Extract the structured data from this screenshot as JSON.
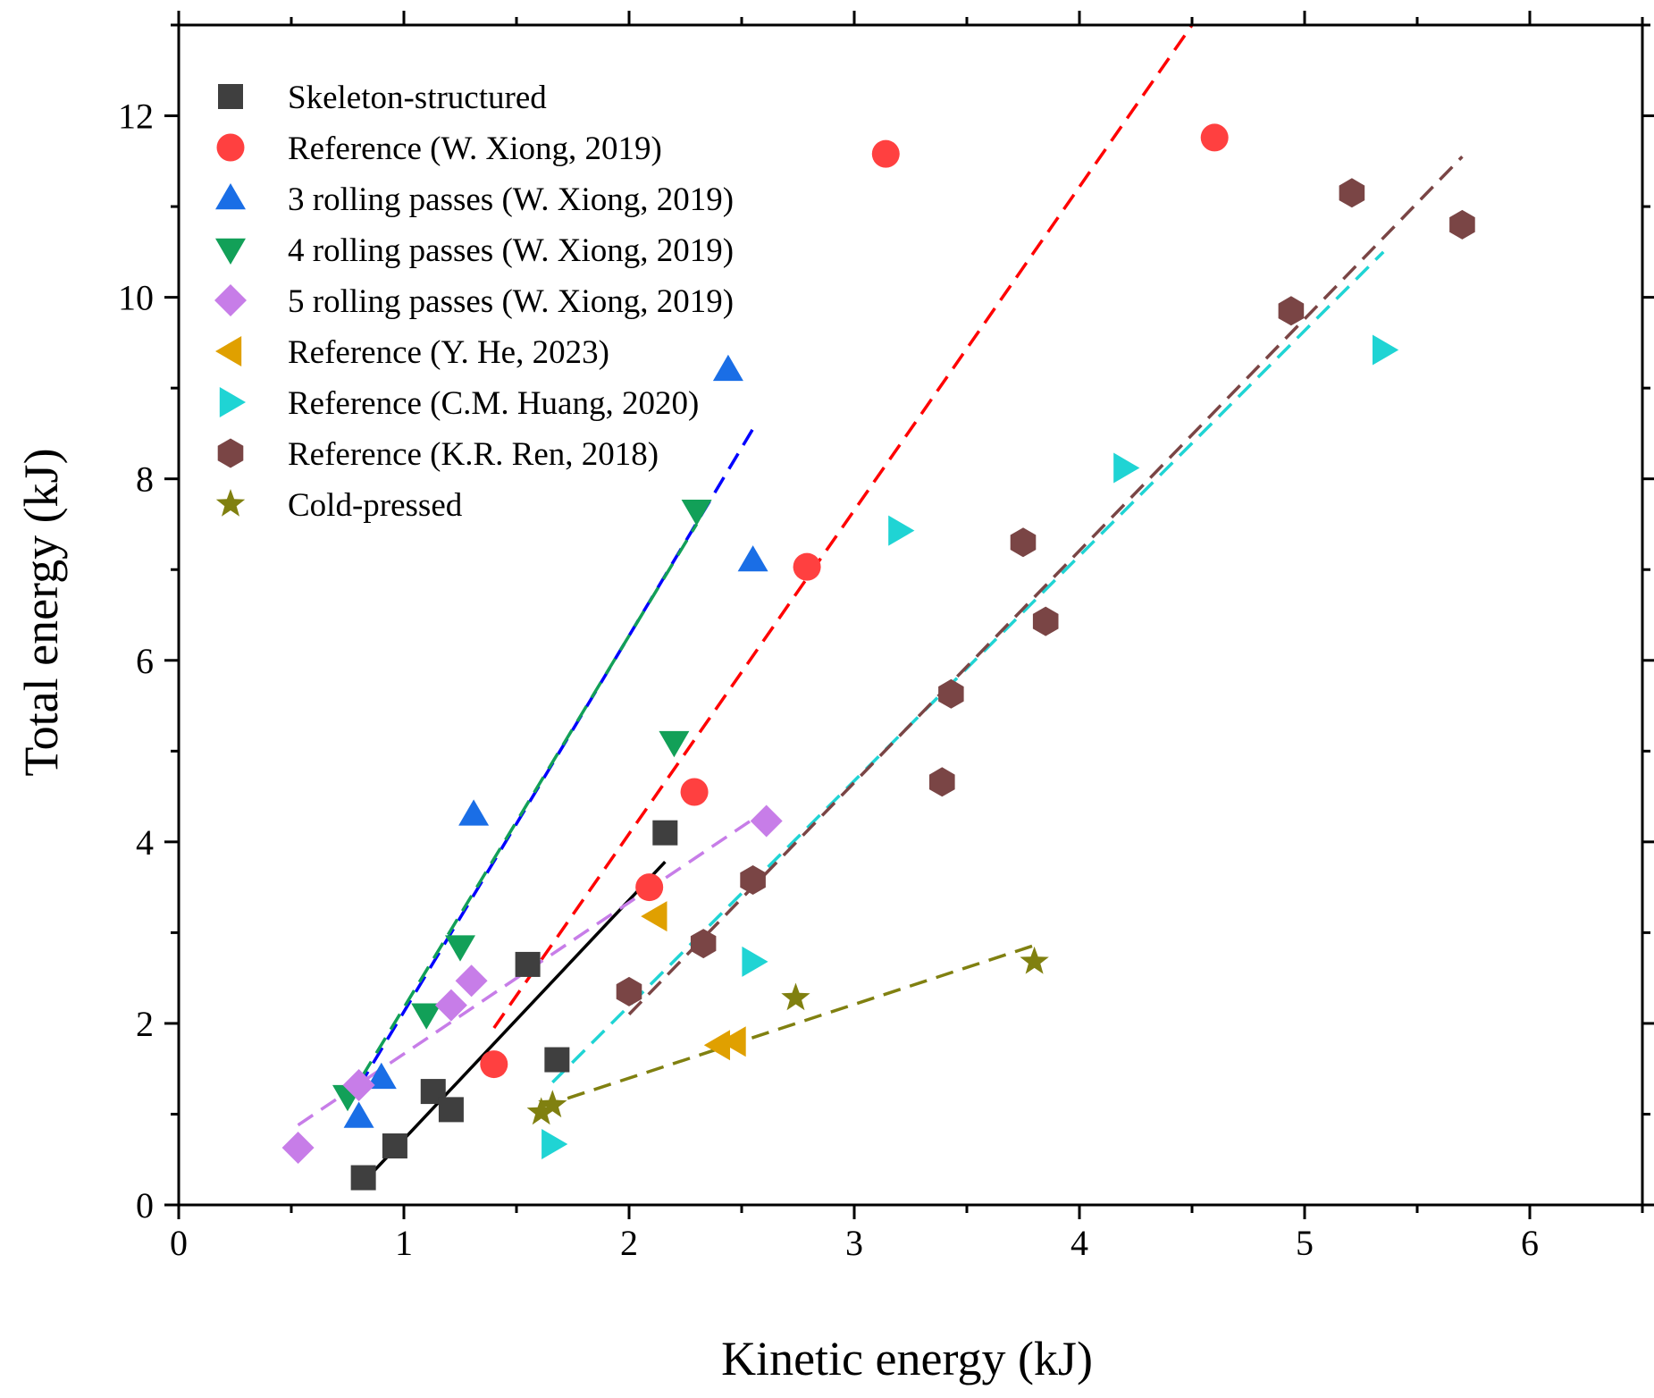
{
  "chart_data": {
    "type": "scatter",
    "title": "",
    "xlabel": "Kinetic energy (kJ)",
    "ylabel": "Total energy (kJ)",
    "xlim": [
      0,
      6.5
    ],
    "ylim": [
      0,
      13
    ],
    "xticks": [
      0,
      1,
      2,
      3,
      4,
      5,
      6
    ],
    "xtick_labels": [
      "0",
      "1",
      "2",
      "3",
      "4",
      "5",
      "6"
    ],
    "yticks": [
      0,
      2,
      4,
      6,
      8,
      10,
      12
    ],
    "ytick_labels": [
      "0",
      "2",
      "4",
      "6",
      "8",
      "10",
      "12"
    ],
    "grid": false,
    "legend_position": "top-left",
    "series": [
      {
        "name": "Skeleton-structured",
        "marker": "square",
        "color": "#3f3f3f",
        "points": [
          [
            0.82,
            0.3
          ],
          [
            0.96,
            0.65
          ],
          [
            1.13,
            1.25
          ],
          [
            1.21,
            1.05
          ],
          [
            1.55,
            2.65
          ],
          [
            1.68,
            1.6
          ],
          [
            2.16,
            4.1
          ]
        ],
        "fit": {
          "x": [
            0.82,
            2.16
          ],
          "y": [
            0.25,
            3.78
          ],
          "color": "#000000",
          "style": "solid"
        }
      },
      {
        "name": "Reference (W. Xiong, 2019)",
        "marker": "circle",
        "color": "#ff4040",
        "points": [
          [
            1.4,
            1.55
          ],
          [
            2.09,
            3.5
          ],
          [
            2.29,
            4.55
          ],
          [
            2.79,
            7.03
          ],
          [
            3.14,
            11.58
          ],
          [
            4.6,
            11.76
          ]
        ],
        "fit": {
          "x": [
            1.4,
            4.5
          ],
          "y": [
            1.95,
            13.0
          ],
          "color": "#ff0000",
          "style": "dashed"
        }
      },
      {
        "name": "3 rolling passes (W. Xiong, 2019)",
        "marker": "triangle-up",
        "color": "#1a6ee6",
        "points": [
          [
            0.8,
            0.97
          ],
          [
            0.9,
            1.4
          ],
          [
            1.31,
            4.3
          ],
          [
            2.44,
            9.2
          ],
          [
            2.55,
            7.1
          ]
        ],
        "fit": {
          "x": [
            0.8,
            2.55
          ],
          "y": [
            1.3,
            8.55
          ],
          "color": "#0000ff",
          "style": "dashed"
        }
      },
      {
        "name": "4 rolling passes (W. Xiong, 2019)",
        "marker": "triangle-down",
        "color": "#12a058",
        "points": [
          [
            0.75,
            1.2
          ],
          [
            1.1,
            2.1
          ],
          [
            1.25,
            2.85
          ],
          [
            2.2,
            5.1
          ],
          [
            2.3,
            7.65
          ]
        ],
        "fit": {
          "x": [
            0.75,
            2.3
          ],
          "y": [
            1.15,
            7.5
          ],
          "color": "#12a058",
          "style": "dashed"
        }
      },
      {
        "name": "5 rolling passes (W. Xiong, 2019)",
        "marker": "diamond",
        "color": "#c77de8",
        "points": [
          [
            0.53,
            0.63
          ],
          [
            0.8,
            1.32
          ],
          [
            1.21,
            2.2
          ],
          [
            1.3,
            2.47
          ],
          [
            2.61,
            4.23
          ]
        ],
        "fit": {
          "x": [
            0.53,
            2.61
          ],
          "y": [
            0.88,
            4.35
          ],
          "color": "#c77de8",
          "style": "dashed"
        }
      },
      {
        "name": "Reference (Y. He, 2023)",
        "marker": "triangle-left",
        "color": "#e0a000",
        "points": [
          [
            2.12,
            3.18
          ],
          [
            2.4,
            1.76
          ],
          [
            2.47,
            1.8
          ]
        ],
        "fit": null
      },
      {
        "name": "Reference (C.M. Huang, 2020)",
        "marker": "triangle-right",
        "color": "#1fd4d4",
        "points": [
          [
            1.66,
            0.67
          ],
          [
            2.55,
            2.68
          ],
          [
            3.2,
            7.43
          ],
          [
            4.2,
            8.12
          ],
          [
            5.35,
            9.42
          ]
        ],
        "fit": {
          "x": [
            1.66,
            5.35
          ],
          "y": [
            1.35,
            10.5
          ],
          "color": "#1fd4d4",
          "style": "dashed"
        }
      },
      {
        "name": "Reference (K.R. Ren, 2018)",
        "marker": "hexagon",
        "color": "#7a4545",
        "points": [
          [
            2.0,
            2.35
          ],
          [
            2.33,
            2.88
          ],
          [
            2.55,
            3.58
          ],
          [
            3.39,
            4.66
          ],
          [
            3.43,
            5.63
          ],
          [
            3.75,
            7.3
          ],
          [
            3.85,
            6.43
          ],
          [
            4.94,
            9.85
          ],
          [
            5.21,
            11.15
          ],
          [
            5.7,
            10.8
          ]
        ],
        "fit": {
          "x": [
            2.0,
            5.7
          ],
          "y": [
            2.1,
            11.55
          ],
          "color": "#7a4545",
          "style": "dashed"
        }
      },
      {
        "name": "Cold-pressed",
        "marker": "star",
        "color": "#808010",
        "points": [
          [
            1.61,
            1.02
          ],
          [
            1.66,
            1.1
          ],
          [
            2.74,
            2.28
          ],
          [
            3.8,
            2.68
          ]
        ],
        "fit": {
          "x": [
            1.61,
            3.8
          ],
          "y": [
            1.08,
            2.86
          ],
          "color": "#808010",
          "style": "dashed"
        }
      }
    ]
  }
}
